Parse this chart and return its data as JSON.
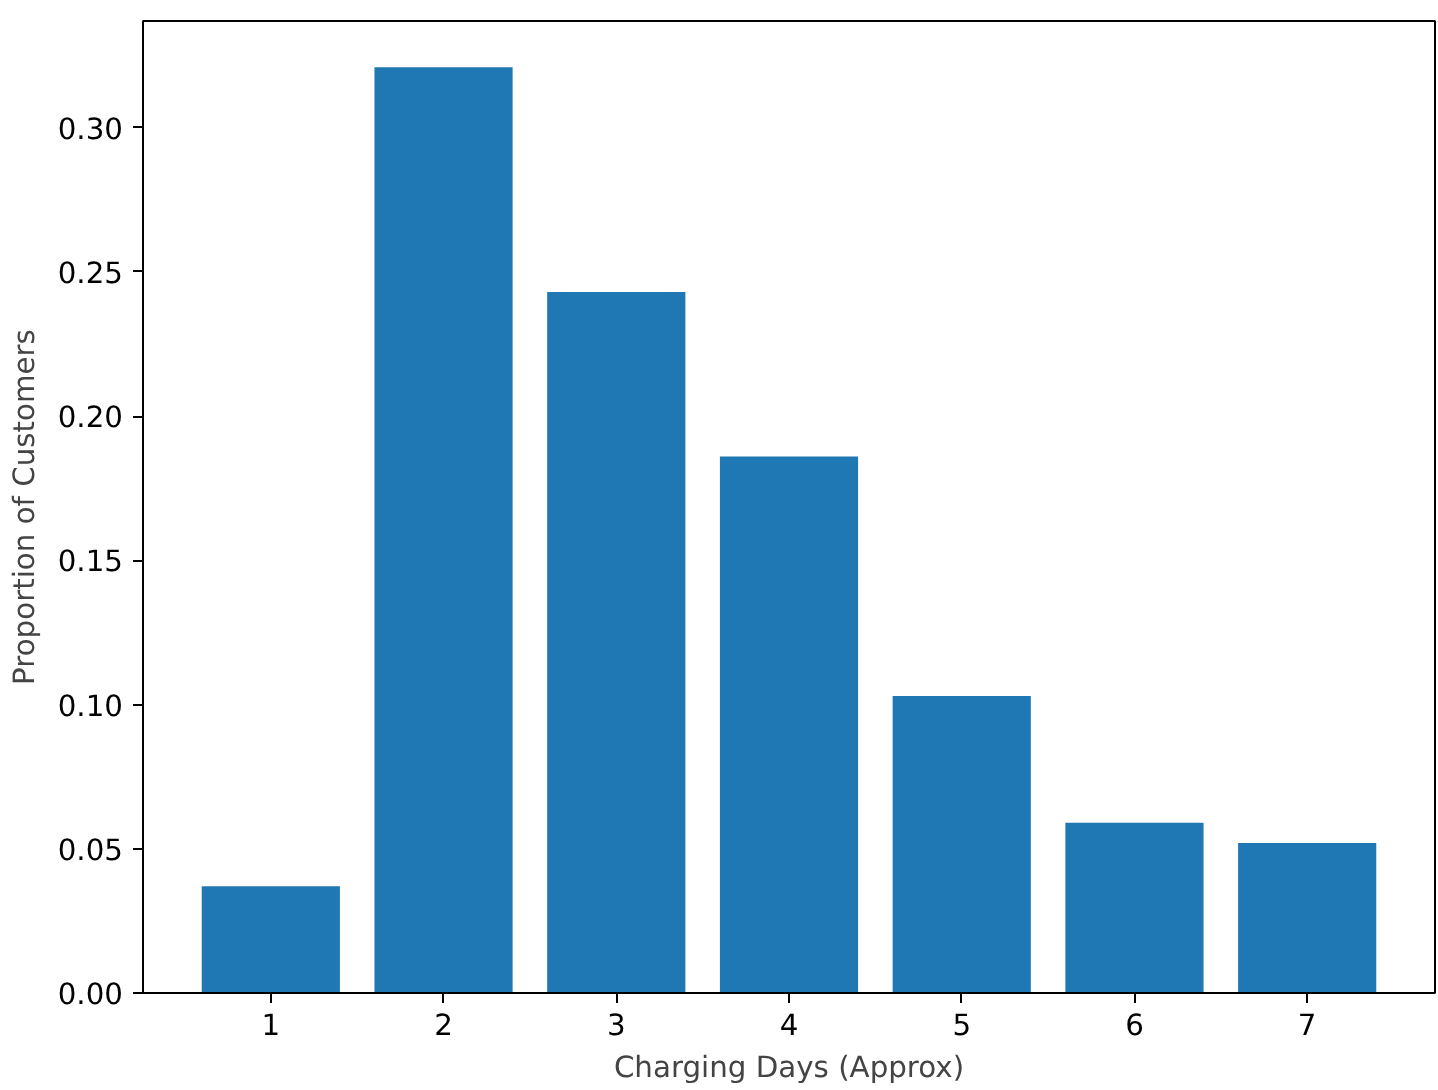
{
  "chart_data": {
    "type": "bar",
    "xlabel": "Charging Days (Approx)",
    "ylabel": "Proportion of Customers",
    "categories": [
      "1",
      "2",
      "3",
      "4",
      "5",
      "6",
      "7"
    ],
    "values": [
      0.037,
      0.321,
      0.243,
      0.186,
      0.103,
      0.059,
      0.052
    ],
    "color": "#1f77b4",
    "ylim": [
      0,
      0.337
    ],
    "yticks": [
      {
        "value": 0,
        "label": "0.00"
      },
      {
        "value": 0.05,
        "label": "0.05"
      },
      {
        "value": 0.1,
        "label": "0.10"
      },
      {
        "value": 0.15,
        "label": "0.15"
      },
      {
        "value": 0.2,
        "label": "0.20"
      },
      {
        "value": 0.25,
        "label": "0.25"
      },
      {
        "value": 0.3,
        "label": "0.30"
      }
    ],
    "grid": false
  }
}
